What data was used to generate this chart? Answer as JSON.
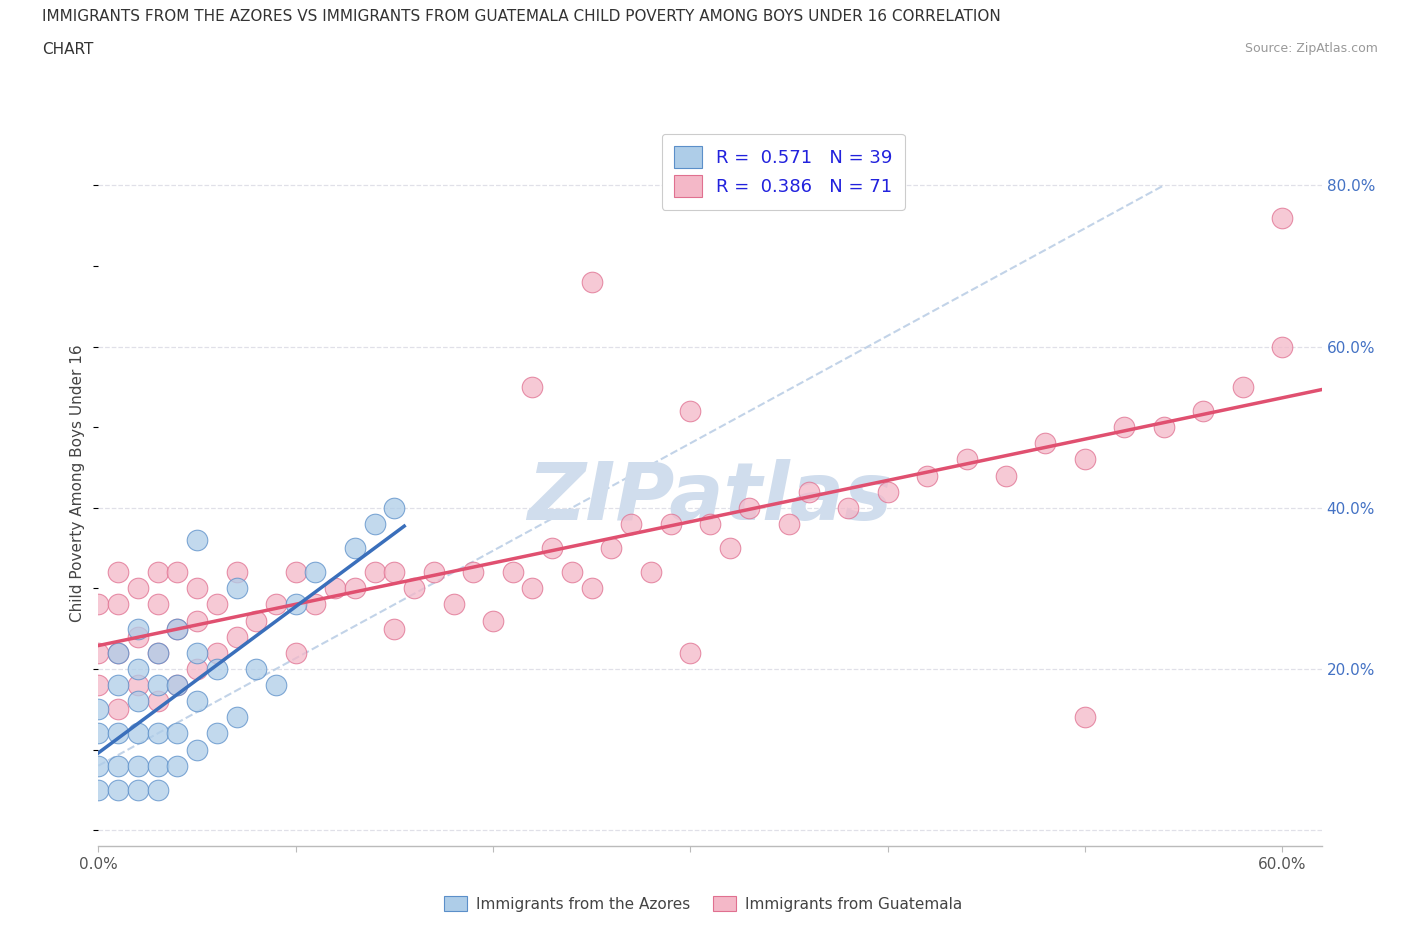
{
  "title_line1": "IMMIGRANTS FROM THE AZORES VS IMMIGRANTS FROM GUATEMALA CHILD POVERTY AMONG BOYS UNDER 16 CORRELATION",
  "title_line2": "CHART",
  "source": "Source: ZipAtlas.com",
  "ylabel": "Child Poverty Among Boys Under 16",
  "xlim": [
    0.0,
    0.62
  ],
  "ylim": [
    -0.02,
    0.88
  ],
  "R_azores": 0.571,
  "N_azores": 39,
  "R_guatemala": 0.386,
  "N_guatemala": 71,
  "color_azores": "#aecde8",
  "color_guatemala": "#f4b8c8",
  "edge_color_azores": "#5b8fc9",
  "edge_color_guatemala": "#e07090",
  "trendline_azores_color": "#3a6fbb",
  "trendline_guatemala_color": "#e05070",
  "diagonal_color": "#b8cce4",
  "grid_color": "#e0e0e8",
  "watermark": "ZIPatlas",
  "watermark_color": "#d0dded",
  "azores_x": [
    0.0,
    0.0,
    0.0,
    0.0,
    0.01,
    0.01,
    0.01,
    0.01,
    0.01,
    0.02,
    0.02,
    0.02,
    0.02,
    0.02,
    0.02,
    0.03,
    0.03,
    0.03,
    0.03,
    0.03,
    0.04,
    0.04,
    0.04,
    0.04,
    0.05,
    0.05,
    0.05,
    0.06,
    0.06,
    0.07,
    0.07,
    0.08,
    0.09,
    0.1,
    0.11,
    0.13,
    0.14,
    0.15,
    0.05
  ],
  "azores_y": [
    0.05,
    0.08,
    0.12,
    0.15,
    0.05,
    0.08,
    0.12,
    0.18,
    0.22,
    0.05,
    0.08,
    0.12,
    0.16,
    0.2,
    0.25,
    0.05,
    0.08,
    0.12,
    0.18,
    0.22,
    0.08,
    0.12,
    0.18,
    0.25,
    0.1,
    0.16,
    0.22,
    0.12,
    0.2,
    0.14,
    0.3,
    0.2,
    0.18,
    0.28,
    0.32,
    0.35,
    0.38,
    0.4,
    0.36
  ],
  "guatemala_x": [
    0.0,
    0.0,
    0.0,
    0.01,
    0.01,
    0.01,
    0.01,
    0.02,
    0.02,
    0.02,
    0.03,
    0.03,
    0.03,
    0.03,
    0.04,
    0.04,
    0.04,
    0.05,
    0.05,
    0.05,
    0.06,
    0.06,
    0.07,
    0.07,
    0.08,
    0.09,
    0.1,
    0.1,
    0.11,
    0.12,
    0.13,
    0.14,
    0.15,
    0.15,
    0.16,
    0.17,
    0.18,
    0.19,
    0.2,
    0.21,
    0.22,
    0.23,
    0.24,
    0.25,
    0.26,
    0.27,
    0.28,
    0.29,
    0.3,
    0.31,
    0.32,
    0.33,
    0.35,
    0.36,
    0.38,
    0.4,
    0.42,
    0.44,
    0.46,
    0.48,
    0.5,
    0.52,
    0.54,
    0.56,
    0.58,
    0.6,
    0.22,
    0.25,
    0.3,
    0.5,
    0.6
  ],
  "guatemala_y": [
    0.18,
    0.22,
    0.28,
    0.15,
    0.22,
    0.28,
    0.32,
    0.18,
    0.24,
    0.3,
    0.16,
    0.22,
    0.28,
    0.32,
    0.18,
    0.25,
    0.32,
    0.2,
    0.26,
    0.3,
    0.22,
    0.28,
    0.24,
    0.32,
    0.26,
    0.28,
    0.22,
    0.32,
    0.28,
    0.3,
    0.3,
    0.32,
    0.25,
    0.32,
    0.3,
    0.32,
    0.28,
    0.32,
    0.26,
    0.32,
    0.3,
    0.35,
    0.32,
    0.3,
    0.35,
    0.38,
    0.32,
    0.38,
    0.22,
    0.38,
    0.35,
    0.4,
    0.38,
    0.42,
    0.4,
    0.42,
    0.44,
    0.46,
    0.44,
    0.48,
    0.46,
    0.5,
    0.5,
    0.52,
    0.55,
    0.6,
    0.55,
    0.68,
    0.52,
    0.14,
    0.76
  ]
}
